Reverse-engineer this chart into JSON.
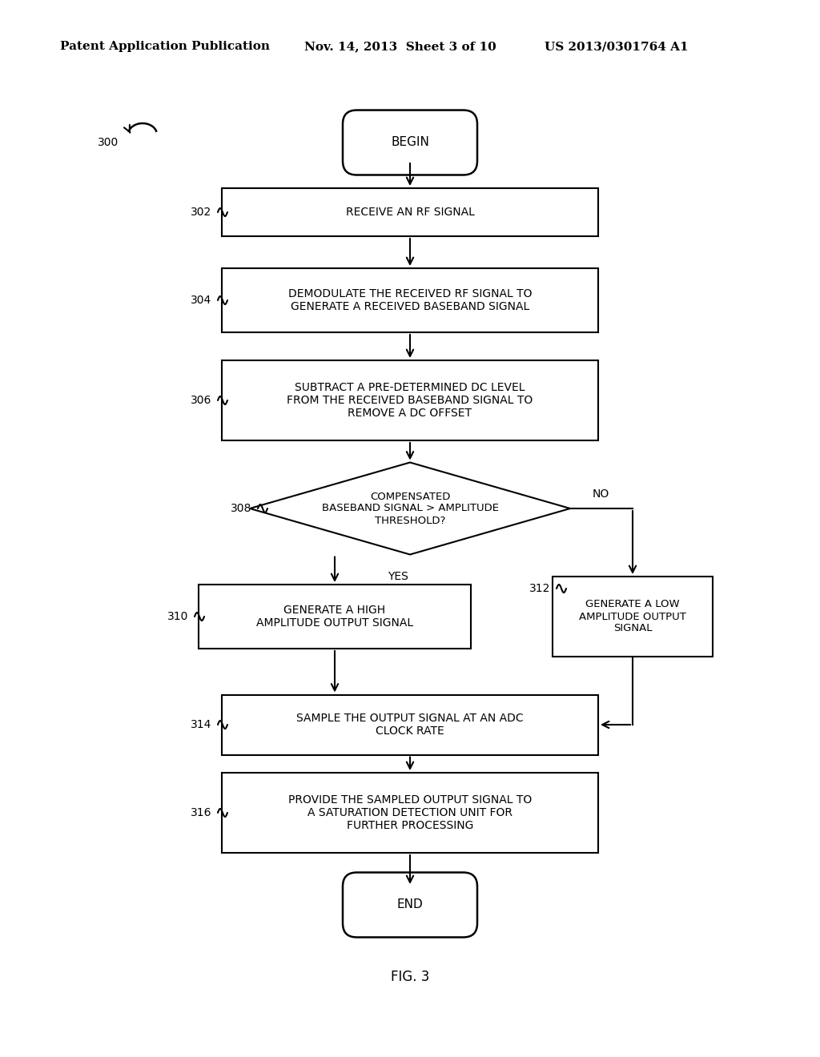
{
  "title_left": "Patent Application Publication",
  "title_mid": "Nov. 14, 2013  Sheet 3 of 10",
  "title_right": "US 2013/0301764 A1",
  "fig_label": "FIG. 3",
  "bg_color": "#ffffff"
}
